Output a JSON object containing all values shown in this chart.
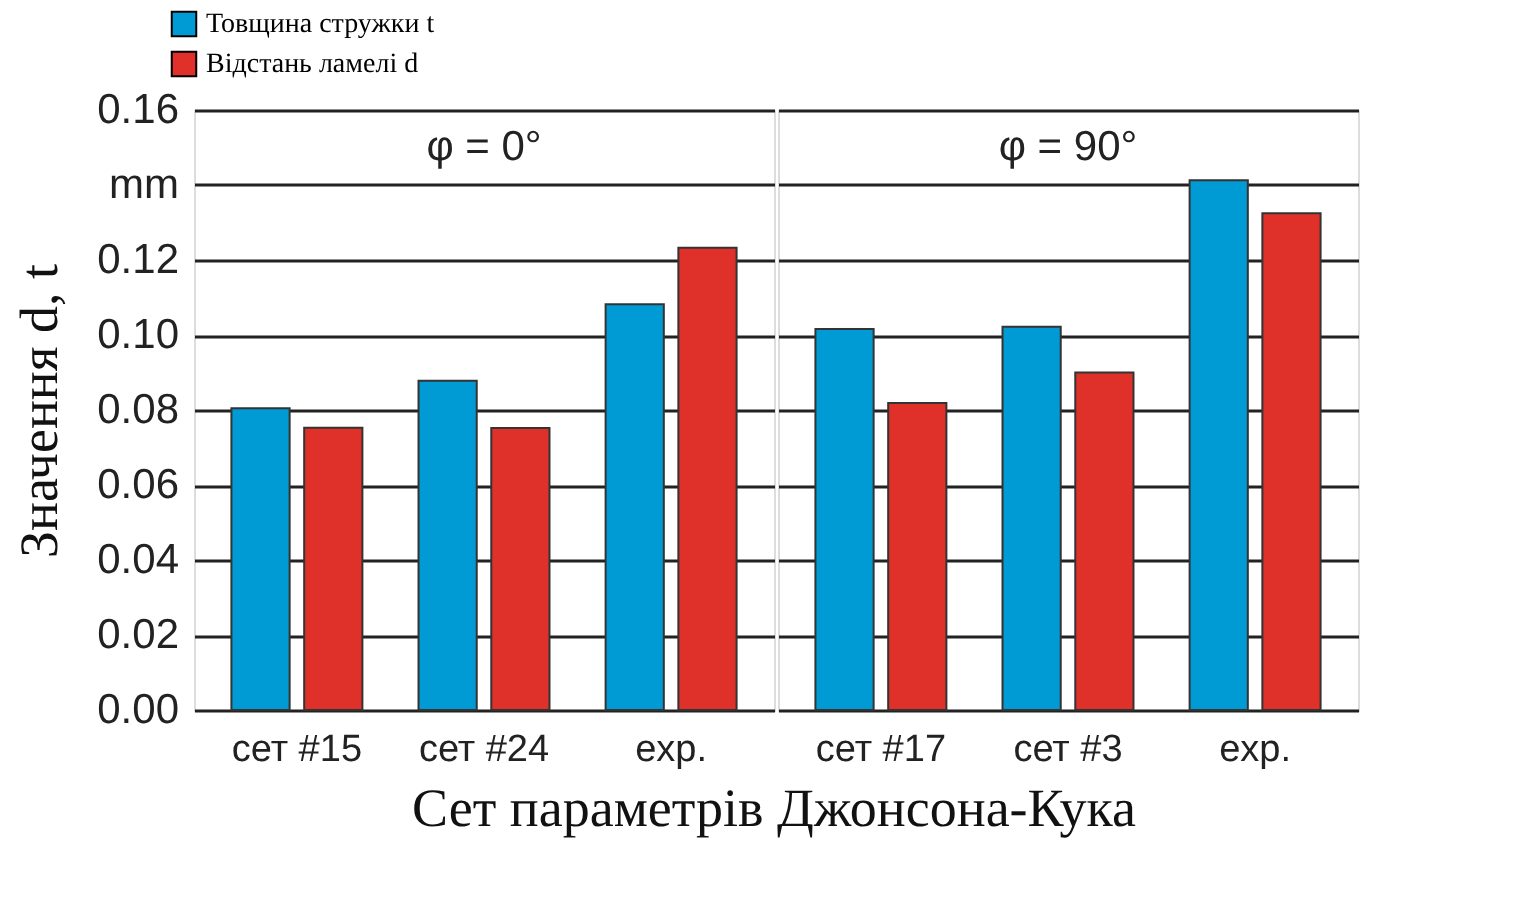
{
  "chart_data": [
    {
      "type": "bar",
      "title": "φ = 0°",
      "ylabel": "Значення d, t",
      "xlabel": "Сет параметрів Джонсона-Кука",
      "categories": [
        "сет #15",
        "сет #24",
        "exp."
      ],
      "series": [
        {
          "name": "Товщина стружки t",
          "color": "#009ad4",
          "values": [
            0.0805,
            0.0878,
            0.1082
          ]
        },
        {
          "name": "Відстань ламелі d",
          "color": "#e0302a",
          "values": [
            0.0753,
            0.0752,
            0.1233
          ]
        }
      ],
      "ylim": [
        0,
        0.16
      ],
      "yticks": [
        {
          "value": 0,
          "label": "0.00"
        },
        {
          "value": 0.02,
          "label": "0.02"
        },
        {
          "value": 0.04,
          "label": "0.04"
        },
        {
          "value": 0.06,
          "label": "0.06"
        },
        {
          "value": 0.08,
          "label": "0.08"
        },
        {
          "value": 0.1,
          "label": "0.10"
        },
        {
          "value": 0.12,
          "label": "0.12"
        },
        {
          "value": 0.14,
          "label": "mm"
        },
        {
          "value": 0.16,
          "label": "0.16"
        }
      ],
      "grid": "y",
      "legend": "top left"
    },
    {
      "type": "bar",
      "title": "φ = 90°",
      "categories": [
        "сет #17",
        "сет #3",
        "exp."
      ],
      "series": [
        {
          "color": "#009ad4",
          "values": [
            0.1016,
            0.1022,
            0.1413
          ]
        },
        {
          "color": "#e0302a",
          "values": [
            0.0819,
            0.09,
            0.1325
          ]
        }
      ],
      "ylim": [
        0,
        0.16
      ],
      "yticks": [
        0,
        0.02,
        0.04,
        0.06,
        0.08,
        0.1,
        0.12,
        0.14,
        0.16
      ],
      "grid": "y",
      "tick_labels": "x"
    }
  ]
}
